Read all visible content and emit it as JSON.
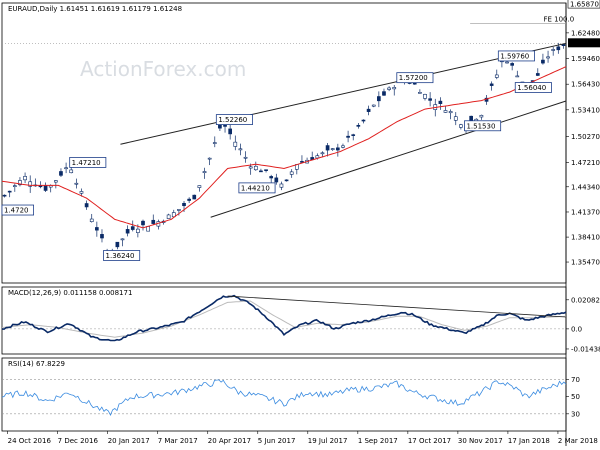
{
  "chart_data": {
    "type": "line",
    "panels": {
      "price": {
        "header": "EURAUD,Daily  1.61451 1.61619 1.61179 1.61248",
        "watermark": "ActionForex.com",
        "ylim": [
          1.33,
          1.66
        ],
        "y_ticks": [
          "1.35470",
          "1.38410",
          "1.41370",
          "1.44340",
          "1.47210",
          "1.50270",
          "1.53410",
          "1.56430",
          "1.59460",
          "1.62480"
        ],
        "y_tick_values": [
          1.3547,
          1.3841,
          1.4137,
          1.4434,
          1.4721,
          1.5027,
          1.5341,
          1.5643,
          1.5946,
          1.6248
        ],
        "fe_label": "FE 100.0",
        "fe_level": 1.6356,
        "top_level_label": "1.65870",
        "top_level": 1.6587,
        "current_label": "1.61248",
        "current_level": 1.6125,
        "annotations": [
          {
            "text": "1.47210",
            "x": 0.12,
            "y": 1.4721
          },
          {
            "text": "1.36240",
            "x": 0.18,
            "y": 1.3624
          },
          {
            "text": "1.52260",
            "x": 0.38,
            "y": 1.5226
          },
          {
            "text": "1.44210",
            "x": 0.42,
            "y": 1.4421
          },
          {
            "text": "1.57200",
            "x": 0.7,
            "y": 1.572
          },
          {
            "text": "1.51530",
            "x": 0.82,
            "y": 1.5153
          },
          {
            "text": "1.59760",
            "x": 0.88,
            "y": 1.5976
          },
          {
            "text": "1.56040",
            "x": 0.91,
            "y": 1.5604
          },
          {
            "text": "1.4720",
            "x": 0.0,
            "y": 1.416
          }
        ],
        "trendlines": [
          {
            "x": [
              0.21,
              1.0
            ],
            "y": [
              1.4935,
              1.6125
            ]
          },
          {
            "x": [
              0.37,
              1.0
            ],
            "y": [
              1.4075,
              1.5445
            ]
          }
        ]
      },
      "macd": {
        "header": "MACD(12,26,9) 0.011158 0.008171",
        "ylim": [
          -0.018,
          0.03
        ],
        "y_ticks": [
          "0.020827",
          "0.0",
          "-0.014386"
        ],
        "y_tick_values": [
          0.020827,
          0.0,
          -0.014386
        ],
        "trendline": {
          "x": [
            0.4,
            1.0
          ],
          "y": [
            0.0235,
            0.0085
          ]
        }
      },
      "rsi": {
        "header": "RSI(14) 67.8229",
        "ylim": [
          10,
          95
        ],
        "y_ticks": [
          "70",
          "50",
          "30"
        ],
        "y_tick_values": [
          70,
          50,
          30
        ]
      }
    },
    "x_ticks": [
      "24 Oct 2016",
      "7 Dec 2016",
      "20 Jan 2017",
      "7 Mar 2017",
      "20 Apr 2017",
      "5 Jun 2017",
      "19 Jul 2017",
      "1 Sep 2017",
      "17 Oct 2017",
      "30 Nov 2017",
      "17 Jan 2018",
      "2 Mar 2018"
    ],
    "price_anchors": [
      [
        0.0,
        1.43
      ],
      [
        0.04,
        1.455
      ],
      [
        0.08,
        1.44
      ],
      [
        0.12,
        1.47
      ],
      [
        0.15,
        1.42
      ],
      [
        0.19,
        1.362
      ],
      [
        0.23,
        1.395
      ],
      [
        0.27,
        1.4
      ],
      [
        0.3,
        1.41
      ],
      [
        0.34,
        1.43
      ],
      [
        0.37,
        1.48
      ],
      [
        0.39,
        1.52
      ],
      [
        0.41,
        1.5
      ],
      [
        0.44,
        1.47
      ],
      [
        0.47,
        1.46
      ],
      [
        0.5,
        1.442
      ],
      [
        0.52,
        1.47
      ],
      [
        0.56,
        1.48
      ],
      [
        0.6,
        1.49
      ],
      [
        0.63,
        1.51
      ],
      [
        0.66,
        1.54
      ],
      [
        0.69,
        1.56
      ],
      [
        0.71,
        1.572
      ],
      [
        0.73,
        1.565
      ],
      [
        0.76,
        1.545
      ],
      [
        0.79,
        1.535
      ],
      [
        0.82,
        1.5153
      ],
      [
        0.85,
        1.53
      ],
      [
        0.88,
        1.58
      ],
      [
        0.89,
        1.5976
      ],
      [
        0.91,
        1.58
      ],
      [
        0.93,
        1.5604
      ],
      [
        0.95,
        1.575
      ],
      [
        0.97,
        1.6
      ],
      [
        1.0,
        1.6125
      ]
    ],
    "ma_anchors": [
      [
        0.0,
        1.45
      ],
      [
        0.05,
        1.445
      ],
      [
        0.1,
        1.445
      ],
      [
        0.15,
        1.43
      ],
      [
        0.2,
        1.405
      ],
      [
        0.25,
        1.395
      ],
      [
        0.3,
        1.405
      ],
      [
        0.35,
        1.43
      ],
      [
        0.4,
        1.465
      ],
      [
        0.45,
        1.47
      ],
      [
        0.5,
        1.465
      ],
      [
        0.55,
        1.475
      ],
      [
        0.6,
        1.485
      ],
      [
        0.65,
        1.5
      ],
      [
        0.7,
        1.52
      ],
      [
        0.75,
        1.535
      ],
      [
        0.8,
        1.54
      ],
      [
        0.85,
        1.545
      ],
      [
        0.9,
        1.555
      ],
      [
        0.95,
        1.57
      ],
      [
        1.0,
        1.585
      ]
    ],
    "macd_anchors": [
      [
        0.0,
        0.0
      ],
      [
        0.04,
        0.005
      ],
      [
        0.08,
        -0.002
      ],
      [
        0.12,
        0.004
      ],
      [
        0.16,
        -0.006
      ],
      [
        0.2,
        -0.009
      ],
      [
        0.24,
        -0.002
      ],
      [
        0.28,
        0.001
      ],
      [
        0.32,
        0.005
      ],
      [
        0.36,
        0.015
      ],
      [
        0.39,
        0.023
      ],
      [
        0.41,
        0.024
      ],
      [
        0.44,
        0.018
      ],
      [
        0.47,
        0.008
      ],
      [
        0.5,
        -0.004
      ],
      [
        0.53,
        0.003
      ],
      [
        0.56,
        0.006
      ],
      [
        0.59,
        0.0
      ],
      [
        0.62,
        0.004
      ],
      [
        0.65,
        0.006
      ],
      [
        0.68,
        0.009
      ],
      [
        0.71,
        0.012
      ],
      [
        0.73,
        0.01
      ],
      [
        0.76,
        0.003
      ],
      [
        0.79,
        0.0
      ],
      [
        0.82,
        -0.003
      ],
      [
        0.85,
        0.002
      ],
      [
        0.88,
        0.01
      ],
      [
        0.9,
        0.011
      ],
      [
        0.93,
        0.006
      ],
      [
        0.96,
        0.009
      ],
      [
        1.0,
        0.012
      ]
    ],
    "signal_anchors": [
      [
        0.0,
        0.001
      ],
      [
        0.05,
        0.003
      ],
      [
        0.1,
        0.001
      ],
      [
        0.15,
        -0.003
      ],
      [
        0.2,
        -0.006
      ],
      [
        0.25,
        -0.003
      ],
      [
        0.3,
        0.002
      ],
      [
        0.35,
        0.01
      ],
      [
        0.4,
        0.019
      ],
      [
        0.44,
        0.02
      ],
      [
        0.48,
        0.01
      ],
      [
        0.52,
        0.001
      ],
      [
        0.56,
        0.004
      ],
      [
        0.6,
        0.003
      ],
      [
        0.65,
        0.005
      ],
      [
        0.7,
        0.009
      ],
      [
        0.74,
        0.009
      ],
      [
        0.78,
        0.003
      ],
      [
        0.82,
        -0.001
      ],
      [
        0.86,
        0.002
      ],
      [
        0.9,
        0.008
      ],
      [
        0.95,
        0.008
      ],
      [
        1.0,
        0.009
      ]
    ],
    "rsi_anchors": [
      [
        0.0,
        50
      ],
      [
        0.04,
        55
      ],
      [
        0.08,
        45
      ],
      [
        0.12,
        55
      ],
      [
        0.16,
        40
      ],
      [
        0.19,
        30
      ],
      [
        0.23,
        50
      ],
      [
        0.27,
        52
      ],
      [
        0.31,
        55
      ],
      [
        0.35,
        62
      ],
      [
        0.39,
        68
      ],
      [
        0.42,
        55
      ],
      [
        0.46,
        50
      ],
      [
        0.5,
        42
      ],
      [
        0.54,
        55
      ],
      [
        0.58,
        52
      ],
      [
        0.62,
        58
      ],
      [
        0.66,
        60
      ],
      [
        0.7,
        65
      ],
      [
        0.73,
        55
      ],
      [
        0.77,
        48
      ],
      [
        0.81,
        42
      ],
      [
        0.85,
        55
      ],
      [
        0.88,
        68
      ],
      [
        0.91,
        60
      ],
      [
        0.93,
        50
      ],
      [
        0.96,
        58
      ],
      [
        1.0,
        68
      ]
    ],
    "colors": {
      "candle": "#0a2a66",
      "ma": "#e0201f",
      "macd": "#0a2a66",
      "signal": "#bbbbbb",
      "rsi": "#3a8be0",
      "trend": "#222222",
      "box_border": "#1e3f8a",
      "box_fill": "#ffffff",
      "grid": "#999999",
      "watermark": "#d9dde2"
    }
  }
}
